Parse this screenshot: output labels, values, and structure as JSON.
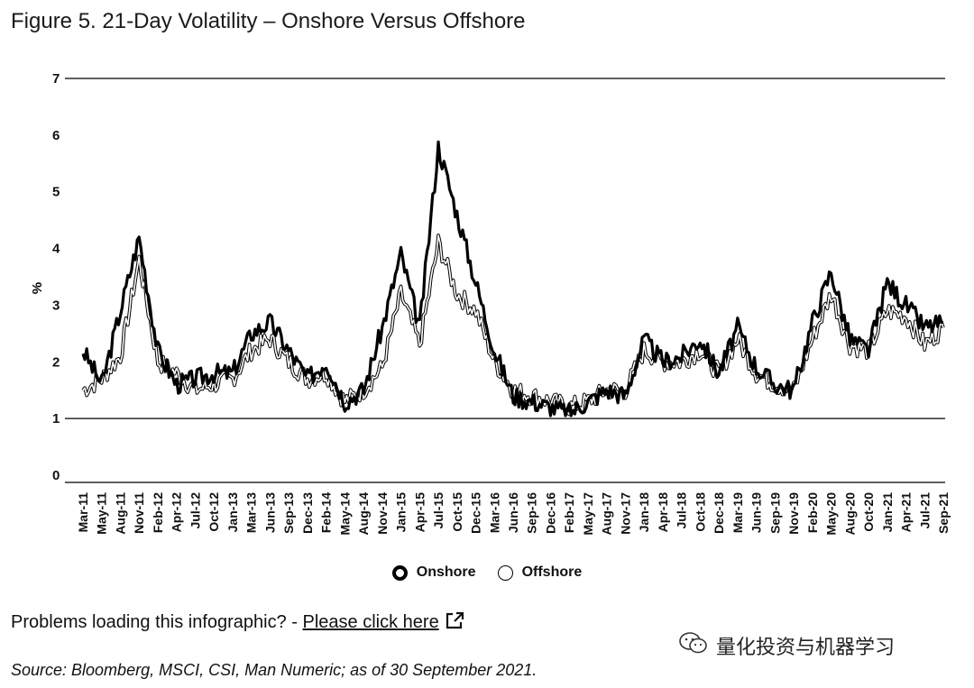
{
  "title": "Figure 5. 21-Day Volatility – Onshore Versus Offshore",
  "problems": {
    "text": "Problems loading this infographic? - ",
    "link": "Please click here"
  },
  "source": "Source: Bloomberg, MSCI, CSI, Man Numeric; as of 30 September 2021.",
  "watermark": {
    "text": "量化投资与机器学习",
    "icon": "wechat-icon"
  },
  "legend_icon": "external-link-icon",
  "chart_data": {
    "type": "line",
    "ylabel": "%",
    "xlabel": "",
    "ylim": [
      0,
      7
    ],
    "yticks": [
      0,
      1,
      2,
      3,
      4,
      5,
      6,
      7
    ],
    "grid": "horizontal at 0, 1, 7",
    "legend_position": "bottom",
    "categories": [
      "Mar-11",
      "May-11",
      "Aug-11",
      "Nov-11",
      "Feb-12",
      "Apr-12",
      "Jul-12",
      "Oct-12",
      "Jan-13",
      "Mar-13",
      "Jun-13",
      "Sep-13",
      "Dec-13",
      "Feb-14",
      "May-14",
      "Aug-14",
      "Nov-14",
      "Jan-15",
      "Apr-15",
      "Jul-15",
      "Oct-15",
      "Dec-15",
      "Mar-16",
      "Jun-16",
      "Sep-16",
      "Dec-16",
      "Feb-17",
      "May-17",
      "Aug-17",
      "Nov-17",
      "Jan-18",
      "Apr-18",
      "Jul-18",
      "Oct-18",
      "Dec-18",
      "Mar-19",
      "Jun-19",
      "Sep-19",
      "Nov-19",
      "Feb-20",
      "May-20",
      "Aug-20",
      "Oct-20",
      "Jan-21",
      "Apr-21",
      "Jul-21",
      "Sep-21"
    ],
    "series": [
      {
        "name": "Onshore",
        "color": "#000000",
        "values": [
          2.2,
          1.6,
          2.9,
          4.2,
          2.2,
          1.6,
          1.7,
          1.8,
          1.8,
          2.5,
          2.7,
          2.2,
          1.7,
          2.0,
          1.3,
          1.5,
          2.6,
          3.9,
          2.6,
          5.8,
          4.6,
          3.4,
          2.2,
          1.4,
          1.3,
          1.2,
          1.1,
          1.3,
          1.5,
          1.4,
          2.4,
          2.0,
          2.1,
          2.4,
          1.8,
          2.6,
          1.9,
          1.6,
          1.5,
          2.7,
          3.6,
          2.4,
          2.2,
          3.4,
          3.0,
          2.6,
          2.7
        ]
      },
      {
        "name": "Offshore",
        "color": "#000000",
        "values": [
          1.5,
          1.7,
          2.1,
          3.8,
          2.0,
          1.8,
          1.5,
          1.6,
          1.7,
          2.2,
          2.4,
          2.0,
          1.7,
          1.8,
          1.3,
          1.5,
          1.9,
          3.2,
          2.3,
          4.1,
          3.2,
          2.9,
          2.0,
          1.5,
          1.4,
          1.3,
          1.2,
          1.3,
          1.5,
          1.5,
          2.2,
          2.0,
          2.0,
          2.2,
          1.8,
          2.4,
          1.8,
          1.6,
          1.5,
          2.4,
          3.2,
          2.3,
          2.2,
          2.9,
          2.8,
          2.3,
          2.6
        ]
      }
    ]
  }
}
